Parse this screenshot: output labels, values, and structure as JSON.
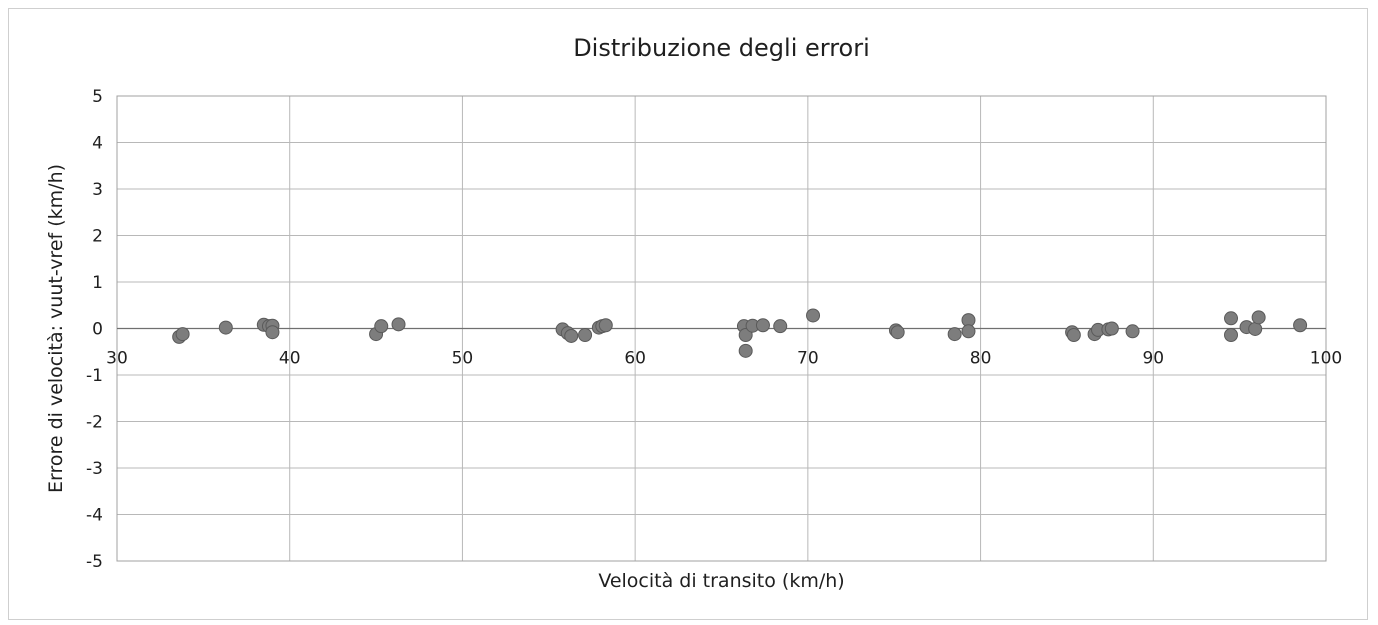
{
  "chart_data": {
    "type": "scatter",
    "title": "Distribuzione degli errori",
    "xlabel": "Velocità di transito (km/h)",
    "ylabel": "Errore di velocità: vuut-vref  (km/h)",
    "xlim": [
      30,
      100
    ],
    "ylim": [
      -5,
      5
    ],
    "x_ticks": [
      30,
      40,
      50,
      60,
      70,
      80,
      90,
      100
    ],
    "y_ticks": [
      -5,
      -4,
      -3,
      -2,
      -1,
      0,
      1,
      2,
      3,
      4,
      5
    ],
    "grid": true,
    "colors": {
      "marker": "#7d7d7d",
      "marker_edge": "#5a5a5a",
      "grid": "#b8b8b8"
    },
    "points": [
      {
        "x": 33.6,
        "y": -0.18
      },
      {
        "x": 33.8,
        "y": -0.12
      },
      {
        "x": 36.3,
        "y": 0.02
      },
      {
        "x": 38.5,
        "y": 0.08
      },
      {
        "x": 38.8,
        "y": 0.05
      },
      {
        "x": 39.0,
        "y": 0.06
      },
      {
        "x": 39.0,
        "y": -0.08
      },
      {
        "x": 45.0,
        "y": -0.12
      },
      {
        "x": 45.3,
        "y": 0.05
      },
      {
        "x": 46.3,
        "y": 0.09
      },
      {
        "x": 55.8,
        "y": -0.02
      },
      {
        "x": 56.1,
        "y": -0.1
      },
      {
        "x": 56.3,
        "y": -0.16
      },
      {
        "x": 57.1,
        "y": -0.14
      },
      {
        "x": 57.9,
        "y": 0.02
      },
      {
        "x": 58.1,
        "y": 0.05
      },
      {
        "x": 58.3,
        "y": 0.07
      },
      {
        "x": 66.3,
        "y": 0.05
      },
      {
        "x": 66.4,
        "y": -0.14
      },
      {
        "x": 66.4,
        "y": -0.48
      },
      {
        "x": 66.8,
        "y": 0.06
      },
      {
        "x": 67.4,
        "y": 0.07
      },
      {
        "x": 68.4,
        "y": 0.05
      },
      {
        "x": 70.3,
        "y": 0.28
      },
      {
        "x": 75.1,
        "y": -0.04
      },
      {
        "x": 75.2,
        "y": -0.08
      },
      {
        "x": 78.5,
        "y": -0.12
      },
      {
        "x": 79.3,
        "y": 0.18
      },
      {
        "x": 79.3,
        "y": -0.06
      },
      {
        "x": 85.3,
        "y": -0.08
      },
      {
        "x": 85.4,
        "y": -0.14
      },
      {
        "x": 86.6,
        "y": -0.12
      },
      {
        "x": 86.8,
        "y": -0.03
      },
      {
        "x": 87.4,
        "y": -0.02
      },
      {
        "x": 87.6,
        "y": 0.0
      },
      {
        "x": 88.8,
        "y": -0.06
      },
      {
        "x": 94.5,
        "y": 0.22
      },
      {
        "x": 94.5,
        "y": -0.14
      },
      {
        "x": 95.4,
        "y": 0.03
      },
      {
        "x": 95.9,
        "y": -0.01
      },
      {
        "x": 96.1,
        "y": 0.24
      },
      {
        "x": 98.5,
        "y": 0.07
      }
    ]
  }
}
